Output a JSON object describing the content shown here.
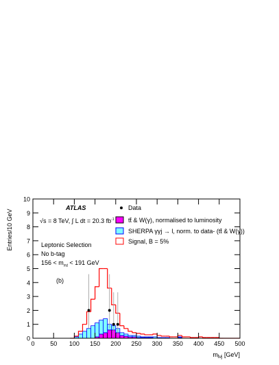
{
  "chart_data": {
    "type": "stacked-histogram",
    "title": "ATLAS",
    "annotations": {
      "energy": "√s = 8 TeV, ∫ L dt = 20.3 fb",
      "energy_sup": "-1",
      "selection": "Leptonic Selection",
      "btag": "No b-tag",
      "window_pre": "156 < m",
      "window_sub": "γγj",
      "window_post": " < 191 GeV",
      "panel": "(b)"
    },
    "y_label": "Entries/10 GeV",
    "x_label": {
      "base": "m",
      "sub": "lνj",
      "rest": " [GeV]"
    },
    "xlim": [
      0,
      500
    ],
    "ylim": [
      0,
      10
    ],
    "xticks": [
      0,
      50,
      100,
      150,
      200,
      250,
      300,
      350,
      400,
      450,
      500
    ],
    "yticks": [
      0,
      1,
      2,
      3,
      4,
      5,
      6,
      7,
      8,
      9,
      10
    ],
    "bins": [
      90,
      100,
      110,
      120,
      130,
      140,
      150,
      160,
      170,
      180,
      190,
      200,
      210,
      220,
      230,
      240,
      250,
      260,
      270,
      280,
      290,
      300,
      310,
      320,
      330,
      340,
      350,
      360,
      370,
      380,
      390,
      400,
      410,
      420,
      430,
      440,
      450,
      460,
      470,
      480,
      490,
      500
    ],
    "series": [
      {
        "name": "tt̄ & W(γ), normalised to luminosity",
        "color": "#ff00ff",
        "edge": "#000000",
        "values": [
          0,
          0,
          0,
          0,
          0,
          0,
          0.1,
          0.3,
          0.4,
          0.6,
          0.6,
          0.4,
          0.2,
          0.15,
          0.1,
          0.1,
          0.05,
          0.05,
          0.05,
          0.05,
          0,
          0,
          0,
          0,
          0,
          0,
          0.05,
          0,
          0,
          0,
          0,
          0,
          0,
          0,
          0,
          0,
          0,
          0,
          0,
          0,
          0
        ]
      },
      {
        "name": "SHERPA γγj → l, norm. to data- (tt̄ & W(γ))",
        "color": "#80ffff",
        "edge": "#0000ff",
        "values": [
          0,
          0.1,
          0.3,
          0.5,
          0.7,
          0.9,
          1.0,
          1.0,
          1.0,
          0.4,
          0.3,
          0.3,
          0.2,
          0.15,
          0.1,
          0.1,
          0.1,
          0.05,
          0.05,
          0.05,
          0.1,
          0.05,
          0.05,
          0.05,
          0,
          0,
          0.05,
          0,
          0,
          0,
          0,
          0,
          0,
          0,
          0,
          0,
          0,
          0,
          0,
          0,
          0
        ]
      },
      {
        "name": "Signal, B = 5%",
        "color": "#ff0000",
        "values": [
          0,
          0.05,
          0.2,
          0.5,
          1.2,
          1.9,
          2.6,
          3.7,
          3.6,
          2.6,
          1.5,
          1.1,
          0.5,
          0.4,
          0.3,
          0.2,
          0.2,
          0.2,
          0.15,
          0.15,
          0.2,
          0.15,
          0.1,
          0.1,
          0.1,
          0.1,
          0.1,
          0.1,
          0.1,
          0.05,
          0.05,
          0.1,
          0.05,
          0.05,
          0.05,
          0.05,
          0,
          0,
          0,
          0,
          0
        ]
      }
    ],
    "data_points": {
      "name": "Data",
      "color": "#000000",
      "x": [
        135,
        185,
        195,
        205
      ],
      "values": [
        2,
        2,
        1,
        1
      ],
      "err_low": [
        1.3,
        1.3,
        0.8,
        0.8
      ],
      "err_high": [
        2.6,
        2.6,
        2.3,
        2.3
      ]
    }
  }
}
